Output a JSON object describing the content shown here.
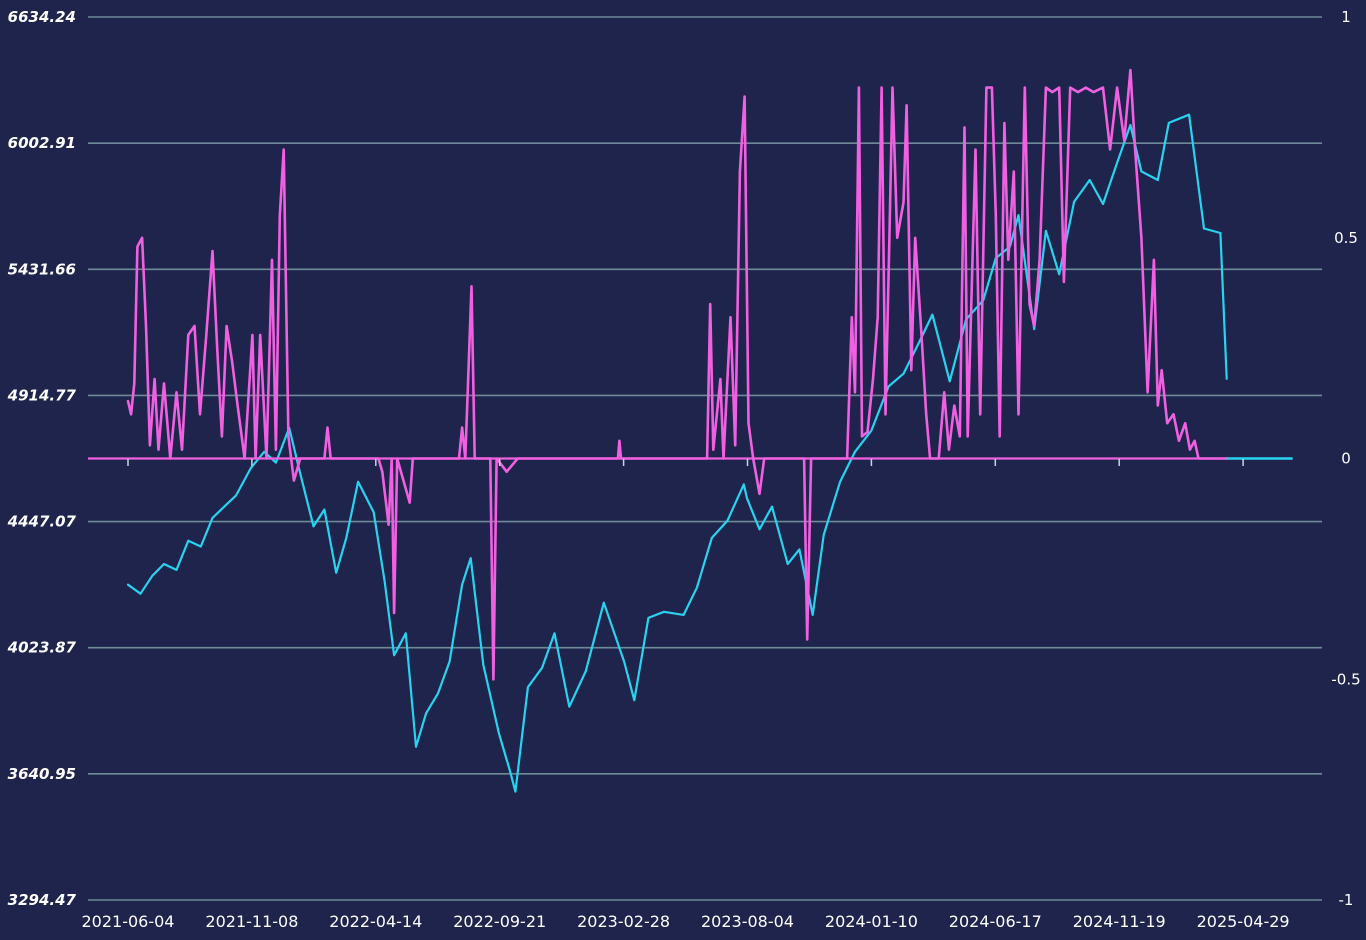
{
  "chart_data": {
    "type": "line",
    "title": "",
    "xlabel": "",
    "ylabel": "",
    "x_ticks": [
      "2021-06-04",
      "2021-11-08",
      "2022-04-14",
      "2022-09-21",
      "2023-02-28",
      "2023-08-04",
      "2024-01-10",
      "2024-06-17",
      "2024-11-19",
      "2025-04-29"
    ],
    "y_left": {
      "ticks": [
        "6634.24",
        "6002.91",
        "5431.66",
        "4914.77",
        "4447.07",
        "4023.87",
        "3640.95",
        "3294.47"
      ],
      "scale": "log",
      "range": [
        3294.47,
        6634.24
      ]
    },
    "y_right": {
      "ticks": [
        "1",
        "0.5",
        "0",
        "-0.5",
        "-1"
      ],
      "range": [
        -1,
        1
      ]
    },
    "grid": true,
    "legend": "none",
    "colors": {
      "background": "#1e244c",
      "grid": "#6f8a97",
      "price_line": "#29d3f0",
      "signal_line": "#f060e0"
    },
    "series": [
      {
        "axis": "left",
        "color": "#29d3f0",
        "points": [
          [
            "2021-06-04",
            4230
          ],
          [
            "2021-06-20",
            4200
          ],
          [
            "2021-07-05",
            4260
          ],
          [
            "2021-07-20",
            4300
          ],
          [
            "2021-08-05",
            4280
          ],
          [
            "2021-08-20",
            4380
          ],
          [
            "2021-09-05",
            4360
          ],
          [
            "2021-09-20",
            4460
          ],
          [
            "2021-10-05",
            4500
          ],
          [
            "2021-10-20",
            4540
          ],
          [
            "2021-11-08",
            4640
          ],
          [
            "2021-11-25",
            4700
          ],
          [
            "2021-12-10",
            4660
          ],
          [
            "2021-12-27",
            4790
          ],
          [
            "2022-01-10",
            4620
          ],
          [
            "2022-01-27",
            4430
          ],
          [
            "2022-02-10",
            4490
          ],
          [
            "2022-02-25",
            4270
          ],
          [
            "2022-03-10",
            4390
          ],
          [
            "2022-03-25",
            4590
          ],
          [
            "2022-04-14",
            4480
          ],
          [
            "2022-04-28",
            4240
          ],
          [
            "2022-05-10",
            4000
          ],
          [
            "2022-05-25",
            4070
          ],
          [
            "2022-06-07",
            3720
          ],
          [
            "2022-06-20",
            3820
          ],
          [
            "2022-07-05",
            3880
          ],
          [
            "2022-07-20",
            3980
          ],
          [
            "2022-08-05",
            4230
          ],
          [
            "2022-08-16",
            4320
          ],
          [
            "2022-09-01",
            3970
          ],
          [
            "2022-09-21",
            3760
          ],
          [
            "2022-10-05",
            3650
          ],
          [
            "2022-10-12",
            3590
          ],
          [
            "2022-10-28",
            3900
          ],
          [
            "2022-11-15",
            3960
          ],
          [
            "2022-12-01",
            4070
          ],
          [
            "2022-12-20",
            3840
          ],
          [
            "2023-01-10",
            3950
          ],
          [
            "2023-02-02",
            4170
          ],
          [
            "2023-02-28",
            3980
          ],
          [
            "2023-03-13",
            3860
          ],
          [
            "2023-03-31",
            4120
          ],
          [
            "2023-04-20",
            4140
          ],
          [
            "2023-05-15",
            4130
          ],
          [
            "2023-06-01",
            4220
          ],
          [
            "2023-06-20",
            4390
          ],
          [
            "2023-07-10",
            4450
          ],
          [
            "2023-07-31",
            4580
          ],
          [
            "2023-08-04",
            4530
          ],
          [
            "2023-08-20",
            4420
          ],
          [
            "2023-09-05",
            4500
          ],
          [
            "2023-09-25",
            4300
          ],
          [
            "2023-10-10",
            4350
          ],
          [
            "2023-10-27",
            4130
          ],
          [
            "2023-11-10",
            4400
          ],
          [
            "2023-12-01",
            4590
          ],
          [
            "2023-12-20",
            4700
          ],
          [
            "2024-01-10",
            4780
          ],
          [
            "2024-02-01",
            4950
          ],
          [
            "2024-02-20",
            5000
          ],
          [
            "2024-03-10",
            5120
          ],
          [
            "2024-03-28",
            5240
          ],
          [
            "2024-04-19",
            4970
          ],
          [
            "2024-05-10",
            5220
          ],
          [
            "2024-06-01",
            5300
          ],
          [
            "2024-06-17",
            5480
          ],
          [
            "2024-07-05",
            5530
          ],
          [
            "2024-07-16",
            5670
          ],
          [
            "2024-08-05",
            5180
          ],
          [
            "2024-08-20",
            5600
          ],
          [
            "2024-09-06",
            5410
          ],
          [
            "2024-09-25",
            5730
          ],
          [
            "2024-10-15",
            5830
          ],
          [
            "2024-11-01",
            5720
          ],
          [
            "2024-11-19",
            5910
          ],
          [
            "2024-12-06",
            6090
          ],
          [
            "2024-12-20",
            5870
          ],
          [
            "2025-01-10",
            5830
          ],
          [
            "2025-01-24",
            6100
          ],
          [
            "2025-02-19",
            6140
          ],
          [
            "2025-03-10",
            5610
          ],
          [
            "2025-03-31",
            5590
          ],
          [
            "2025-04-08",
            4980
          ]
        ]
      },
      {
        "axis": "right",
        "color": "#f060e0",
        "points": [
          [
            "2021-06-04",
            0.13
          ],
          [
            "2021-06-08",
            0.1
          ],
          [
            "2021-06-12",
            0.17
          ],
          [
            "2021-06-16",
            0.48
          ],
          [
            "2021-06-22",
            0.5
          ],
          [
            "2021-06-27",
            0.3
          ],
          [
            "2021-07-02",
            0.03
          ],
          [
            "2021-07-08",
            0.18
          ],
          [
            "2021-07-13",
            0.02
          ],
          [
            "2021-07-20",
            0.17
          ],
          [
            "2021-07-28",
            0.0
          ],
          [
            "2021-08-05",
            0.15
          ],
          [
            "2021-08-12",
            0.02
          ],
          [
            "2021-08-20",
            0.28
          ],
          [
            "2021-08-28",
            0.3
          ],
          [
            "2021-09-04",
            0.1
          ],
          [
            "2021-09-12",
            0.28
          ],
          [
            "2021-09-20",
            0.47
          ],
          [
            "2021-09-26",
            0.25
          ],
          [
            "2021-10-02",
            0.05
          ],
          [
            "2021-10-08",
            0.3
          ],
          [
            "2021-10-15",
            0.22
          ],
          [
            "2021-10-22",
            0.12
          ],
          [
            "2021-10-31",
            0.0
          ],
          [
            "2021-11-10",
            0.28
          ],
          [
            "2021-11-14",
            0.0
          ],
          [
            "2021-11-20",
            0.28
          ],
          [
            "2021-11-28",
            0.0
          ],
          [
            "2021-12-05",
            0.45
          ],
          [
            "2021-12-10",
            0.02
          ],
          [
            "2021-12-15",
            0.55
          ],
          [
            "2021-12-20",
            0.7
          ],
          [
            "2021-12-26",
            0.05
          ],
          [
            "2022-01-02",
            -0.05
          ],
          [
            "2022-01-10",
            0.0
          ],
          [
            "2022-02-10",
            0.0
          ],
          [
            "2022-02-14",
            0.07
          ],
          [
            "2022-02-18",
            0.0
          ],
          [
            "2022-04-20",
            0.0
          ],
          [
            "2022-04-25",
            -0.03
          ],
          [
            "2022-05-03",
            -0.15
          ],
          [
            "2022-05-07",
            0.0
          ],
          [
            "2022-05-10",
            -0.35
          ],
          [
            "2022-05-14",
            0.0
          ],
          [
            "2022-05-30",
            -0.1
          ],
          [
            "2022-06-03",
            0.0
          ],
          [
            "2022-08-01",
            0.0
          ],
          [
            "2022-08-05",
            0.07
          ],
          [
            "2022-08-09",
            0.0
          ],
          [
            "2022-08-17",
            0.39
          ],
          [
            "2022-08-21",
            0.0
          ],
          [
            "2022-09-10",
            0.0
          ],
          [
            "2022-09-14",
            -0.5
          ],
          [
            "2022-09-18",
            0.0
          ],
          [
            "2022-10-01",
            -0.03
          ],
          [
            "2022-10-15",
            0.0
          ],
          [
            "2023-02-20",
            0.0
          ],
          [
            "2023-02-22",
            0.04
          ],
          [
            "2023-02-24",
            0.0
          ],
          [
            "2023-06-14",
            0.0
          ],
          [
            "2023-06-18",
            0.35
          ],
          [
            "2023-06-22",
            0.02
          ],
          [
            "2023-07-01",
            0.18
          ],
          [
            "2023-07-05",
            0.0
          ],
          [
            "2023-07-14",
            0.32
          ],
          [
            "2023-07-20",
            0.03
          ],
          [
            "2023-07-26",
            0.65
          ],
          [
            "2023-08-01",
            0.82
          ],
          [
            "2023-08-06",
            0.08
          ],
          [
            "2023-08-12",
            0.0
          ],
          [
            "2023-08-20",
            -0.08
          ],
          [
            "2023-08-26",
            0.0
          ],
          [
            "2023-10-16",
            0.0
          ],
          [
            "2023-10-20",
            -0.41
          ],
          [
            "2023-10-25",
            0.0
          ],
          [
            "2023-12-10",
            0.0
          ],
          [
            "2023-12-16",
            0.32
          ],
          [
            "2023-12-20",
            0.15
          ],
          [
            "2023-12-25",
            0.84
          ],
          [
            "2023-12-29",
            0.05
          ],
          [
            "2024-01-05",
            0.06
          ],
          [
            "2024-01-12",
            0.18
          ],
          [
            "2024-01-18",
            0.32
          ],
          [
            "2024-01-23",
            0.84
          ],
          [
            "2024-01-28",
            0.1
          ],
          [
            "2024-02-02",
            0.5
          ],
          [
            "2024-02-06",
            0.84
          ],
          [
            "2024-02-12",
            0.5
          ],
          [
            "2024-02-20",
            0.58
          ],
          [
            "2024-02-24",
            0.8
          ],
          [
            "2024-03-01",
            0.2
          ],
          [
            "2024-03-06",
            0.5
          ],
          [
            "2024-03-14",
            0.28
          ],
          [
            "2024-03-20",
            0.1
          ],
          [
            "2024-03-25",
            0.0
          ],
          [
            "2024-04-05",
            0.0
          ],
          [
            "2024-04-12",
            0.15
          ],
          [
            "2024-04-18",
            0.02
          ],
          [
            "2024-04-25",
            0.12
          ],
          [
            "2024-05-02",
            0.05
          ],
          [
            "2024-05-08",
            0.75
          ],
          [
            "2024-05-12",
            0.05
          ],
          [
            "2024-05-22",
            0.7
          ],
          [
            "2024-05-28",
            0.1
          ],
          [
            "2024-06-05",
            0.84
          ],
          [
            "2024-06-12",
            0.84
          ],
          [
            "2024-06-17",
            0.55
          ],
          [
            "2024-06-22",
            0.05
          ],
          [
            "2024-06-28",
            0.76
          ],
          [
            "2024-07-03",
            0.45
          ],
          [
            "2024-07-10",
            0.65
          ],
          [
            "2024-07-16",
            0.1
          ],
          [
            "2024-07-24",
            0.84
          ],
          [
            "2024-07-30",
            0.35
          ],
          [
            "2024-08-05",
            0.3
          ],
          [
            "2024-08-12",
            0.45
          ],
          [
            "2024-08-20",
            0.84
          ],
          [
            "2024-08-28",
            0.83
          ],
          [
            "2024-09-06",
            0.84
          ],
          [
            "2024-09-12",
            0.4
          ],
          [
            "2024-09-20",
            0.84
          ],
          [
            "2024-09-30",
            0.83
          ],
          [
            "2024-10-10",
            0.84
          ],
          [
            "2024-10-20",
            0.83
          ],
          [
            "2024-11-01",
            0.84
          ],
          [
            "2024-11-10",
            0.7
          ],
          [
            "2024-11-19",
            0.84
          ],
          [
            "2024-11-28",
            0.72
          ],
          [
            "2024-12-06",
            0.88
          ],
          [
            "2024-12-12",
            0.7
          ],
          [
            "2024-12-20",
            0.5
          ],
          [
            "2024-12-28",
            0.15
          ],
          [
            "2025-01-05",
            0.45
          ],
          [
            "2025-01-10",
            0.12
          ],
          [
            "2025-01-15",
            0.2
          ],
          [
            "2025-01-22",
            0.08
          ],
          [
            "2025-01-30",
            0.1
          ],
          [
            "2025-02-06",
            0.04
          ],
          [
            "2025-02-14",
            0.08
          ],
          [
            "2025-02-20",
            0.02
          ],
          [
            "2025-02-26",
            0.04
          ],
          [
            "2025-03-03",
            0.0
          ],
          [
            "2025-04-08",
            0.0
          ]
        ]
      },
      {
        "axis": "right",
        "color": "#29d3f0",
        "points": [
          [
            "2025-04-08",
            0.0
          ],
          [
            "2025-06-30",
            0.0
          ]
        ]
      }
    ]
  }
}
